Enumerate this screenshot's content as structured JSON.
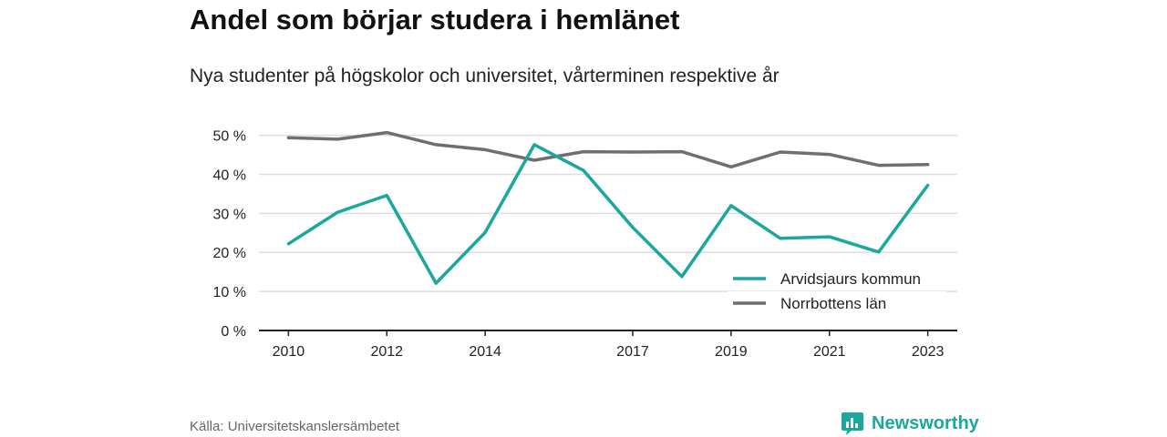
{
  "header": {
    "title": "Andel som börjar studera i hemlänet",
    "subtitle": "Nya studenter på högskolor och universitet, vårterminen respektive år"
  },
  "footer": {
    "source": "Källa: Universitetskanslersämbetet",
    "brand": "Newsworthy"
  },
  "colors": {
    "arvidsjaur": "#1aa79e",
    "norrbotten": "#6e6e73",
    "grid": "#dddddd",
    "axis": "#222222",
    "brand": "#1aa79e"
  },
  "chart_data": {
    "type": "line",
    "x": [
      2010,
      2011,
      2012,
      2013,
      2014,
      2015,
      2016,
      2017,
      2018,
      2019,
      2020,
      2021,
      2022,
      2023
    ],
    "x_tick_labels": [
      "2010",
      "2012",
      "2014",
      "2017",
      "2019",
      "2021",
      "2023"
    ],
    "y_tick_labels": [
      "0 %",
      "10 %",
      "20 %",
      "30 %",
      "40 %",
      "50 %"
    ],
    "y_ticks": [
      0,
      10,
      20,
      30,
      40,
      50
    ],
    "ylim": [
      0,
      52
    ],
    "xlim": [
      2009.4,
      2023.6
    ],
    "grid": true,
    "legend_position": "bottom-right",
    "series": [
      {
        "name": "Arvidsjaurs kommun",
        "color_key": "arvidsjaur",
        "values": [
          22.2,
          30.3,
          34.6,
          12.1,
          25.1,
          47.6,
          41.0,
          26.4,
          13.8,
          32.0,
          23.6,
          24.0,
          20.1,
          37.2
        ]
      },
      {
        "name": "Norrbottens län",
        "color_key": "norrbotten",
        "values": [
          49.4,
          49.0,
          50.7,
          47.6,
          46.3,
          43.6,
          45.8,
          45.7,
          45.8,
          41.9,
          45.7,
          45.1,
          42.3,
          42.5
        ]
      }
    ]
  }
}
